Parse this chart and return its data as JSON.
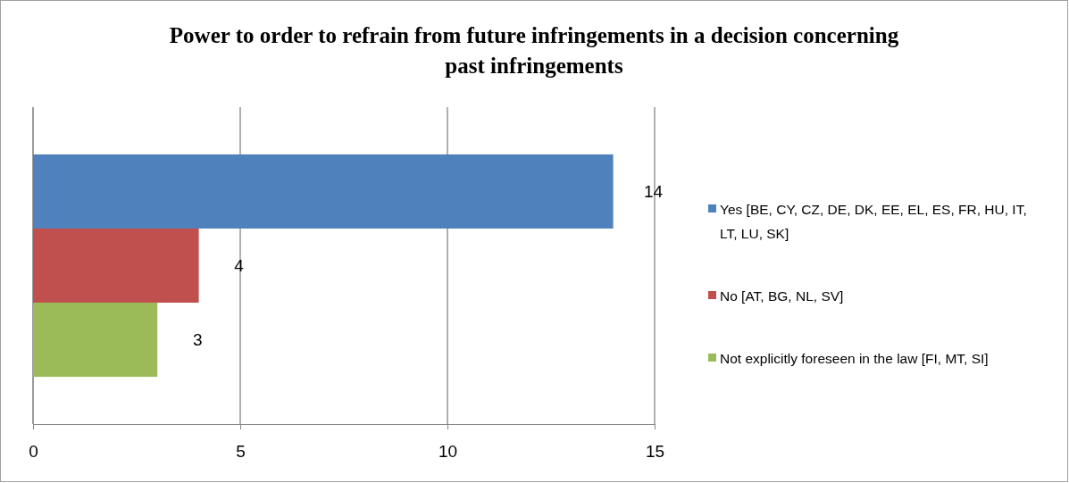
{
  "chart_data": {
    "type": "bar",
    "orientation": "horizontal",
    "title": "Power to order to refrain from future infringements in a decision concerning past infringements",
    "categories": [
      null
    ],
    "series": [
      {
        "name": "Yes [BE, CY, CZ, DE, DK, EE, EL, ES, FR, HU, IT, LT, LU, SK]",
        "color": "#4f81bd",
        "values": [
          14
        ]
      },
      {
        "name": "No [AT, BG, NL, SV]",
        "color": "#c0504d",
        "values": [
          4
        ]
      },
      {
        "name": "Not explicitly foreseen in the law [FI, MT, SI]",
        "color": "#9bbb59",
        "values": [
          3
        ]
      }
    ],
    "xlim": [
      0,
      15
    ],
    "xticks": [
      0,
      5,
      10,
      15
    ],
    "grid": "x",
    "legend": "right",
    "data_labels": true
  }
}
